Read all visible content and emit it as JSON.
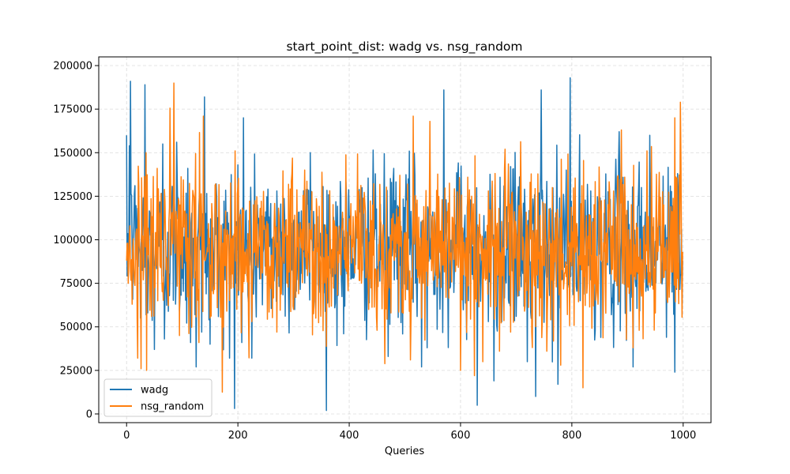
{
  "chart_data": {
    "type": "line",
    "title": "start_point_dist: wadg vs. nsg_random",
    "xlabel": "Queries",
    "ylabel": "",
    "xlim": [
      -50,
      1050
    ],
    "ylim": [
      -5000,
      205000
    ],
    "xticks": [
      0,
      200,
      400,
      600,
      800,
      1000
    ],
    "yticks": [
      0,
      25000,
      50000,
      75000,
      100000,
      125000,
      150000,
      175000,
      200000
    ],
    "grid": true,
    "legend_position": "lower-left",
    "n_points": 1000,
    "series": [
      {
        "name": "wadg",
        "color": "#1f77b4",
        "anchors": [
          [
            0,
            160000
          ],
          [
            3,
            88000
          ],
          [
            5,
            154000
          ],
          [
            7,
            191000
          ],
          [
            12,
            98000
          ],
          [
            20,
            118000
          ],
          [
            25,
            55000
          ],
          [
            33,
            189000
          ],
          [
            38,
            58000
          ],
          [
            45,
            102000
          ],
          [
            50,
            37000
          ],
          [
            55,
            118000
          ],
          [
            65,
            155000
          ],
          [
            68,
            43000
          ],
          [
            80,
            101000
          ],
          [
            90,
            156000
          ],
          [
            100,
            78000
          ],
          [
            110,
            141000
          ],
          [
            115,
            41000
          ],
          [
            125,
            27000
          ],
          [
            130,
            120000
          ],
          [
            135,
            47000
          ],
          [
            140,
            182000
          ],
          [
            150,
            40000
          ],
          [
            160,
            103000
          ],
          [
            170,
            96000
          ],
          [
            185,
            32000
          ],
          [
            200,
            143000
          ],
          [
            207,
            41000
          ],
          [
            210,
            170000
          ],
          [
            225,
            32000
          ],
          [
            235,
            120000
          ],
          [
            255,
            101000
          ],
          [
            270,
            128000
          ],
          [
            290,
            92000
          ],
          [
            330,
            150000
          ],
          [
            340,
            60000
          ],
          [
            380,
            68000
          ],
          [
            390,
            46000
          ],
          [
            400,
            113000
          ],
          [
            410,
            85000
          ],
          [
            430,
            105000
          ],
          [
            445,
            100000
          ],
          [
            460,
            86000
          ],
          [
            470,
            33000
          ],
          [
            480,
            141000
          ],
          [
            495,
            88000
          ],
          [
            510,
            98000
          ],
          [
            530,
            27000
          ],
          [
            540,
            38000
          ],
          [
            550,
            116000
          ],
          [
            560,
            101000
          ],
          [
            570,
            186000
          ],
          [
            580,
            92000
          ],
          [
            600,
            107000
          ],
          [
            610,
            71000
          ],
          [
            620,
            100000
          ],
          [
            625,
            42000
          ],
          [
            630,
            5000
          ],
          [
            640,
            88000
          ],
          [
            650,
            53000
          ],
          [
            660,
            19000
          ],
          [
            670,
            68000
          ],
          [
            690,
            142000
          ],
          [
            700,
            56000
          ],
          [
            720,
            30000
          ],
          [
            735,
            10000
          ],
          [
            745,
            186000
          ],
          [
            760,
            68000
          ],
          [
            775,
            17000
          ],
          [
            790,
            140000
          ],
          [
            797,
            193000
          ],
          [
            805,
            99000
          ],
          [
            815,
            65000
          ],
          [
            825,
            95000
          ],
          [
            840,
            72000
          ],
          [
            860,
            98000
          ],
          [
            885,
            162000
          ],
          [
            895,
            96000
          ],
          [
            910,
            27000
          ],
          [
            920,
            130000
          ],
          [
            940,
            160000
          ],
          [
            960,
            90000
          ],
          [
            970,
            44000
          ],
          [
            980,
            70000
          ],
          [
            985,
            24000
          ],
          [
            990,
            138000
          ],
          [
            995,
            80000
          ],
          [
            999,
            88000
          ]
        ]
      },
      {
        "name": "nsg_random",
        "color": "#ff7f0e",
        "anchors": [
          [
            0,
            88000
          ],
          [
            3,
            75000
          ],
          [
            6,
            108000
          ],
          [
            10,
            63000
          ],
          [
            20,
            32000
          ],
          [
            30,
            77000
          ],
          [
            35,
            150000
          ],
          [
            45,
            56000
          ],
          [
            55,
            141000
          ],
          [
            70,
            102000
          ],
          [
            85,
            190000
          ],
          [
            95,
            45000
          ],
          [
            110,
            101000
          ],
          [
            120,
            126000
          ],
          [
            130,
            41000
          ],
          [
            138,
            171000
          ],
          [
            150,
            55000
          ],
          [
            160,
            132000
          ],
          [
            180,
            59000
          ],
          [
            195,
            151000
          ],
          [
            210,
            117000
          ],
          [
            225,
            53000
          ],
          [
            240,
            118000
          ],
          [
            255,
            101000
          ],
          [
            270,
            47000
          ],
          [
            285,
            102000
          ],
          [
            300,
            60000
          ],
          [
            320,
            140000
          ],
          [
            340,
            55000
          ],
          [
            360,
            103000
          ],
          [
            380,
            93000
          ],
          [
            395,
            82000
          ],
          [
            405,
            100000
          ],
          [
            420,
            110000
          ],
          [
            435,
            60000
          ],
          [
            450,
            48000
          ],
          [
            460,
            103000
          ],
          [
            475,
            58000
          ],
          [
            490,
            113000
          ],
          [
            505,
            132000
          ],
          [
            510,
            31000
          ],
          [
            515,
            171000
          ],
          [
            530,
            55000
          ],
          [
            545,
            168000
          ],
          [
            560,
            78000
          ],
          [
            575,
            91000
          ],
          [
            585,
            113000
          ],
          [
            595,
            108000
          ],
          [
            600,
            25000
          ],
          [
            610,
            101000
          ],
          [
            620,
            125000
          ],
          [
            625,
            22000
          ],
          [
            630,
            101000
          ],
          [
            640,
            30000
          ],
          [
            650,
            128000
          ],
          [
            660,
            100000
          ],
          [
            670,
            36000
          ],
          [
            680,
            152000
          ],
          [
            690,
            47000
          ],
          [
            700,
            104000
          ],
          [
            715,
            59000
          ],
          [
            725,
            133000
          ],
          [
            740,
            89000
          ],
          [
            755,
            36000
          ],
          [
            765,
            130000
          ],
          [
            780,
            28000
          ],
          [
            792,
            57000
          ],
          [
            800,
            85000
          ],
          [
            810,
            101000
          ],
          [
            820,
            15000
          ],
          [
            830,
            95000
          ],
          [
            850,
            120000
          ],
          [
            860,
            75000
          ],
          [
            875,
            128000
          ],
          [
            890,
            106000
          ],
          [
            905,
            100000
          ],
          [
            910,
            38000
          ],
          [
            920,
            90000
          ],
          [
            935,
            151000
          ],
          [
            950,
            58000
          ],
          [
            965,
            120000
          ],
          [
            975,
            67000
          ],
          [
            985,
            170000
          ],
          [
            995,
            179000
          ],
          [
            999,
            93000
          ]
        ]
      }
    ]
  }
}
